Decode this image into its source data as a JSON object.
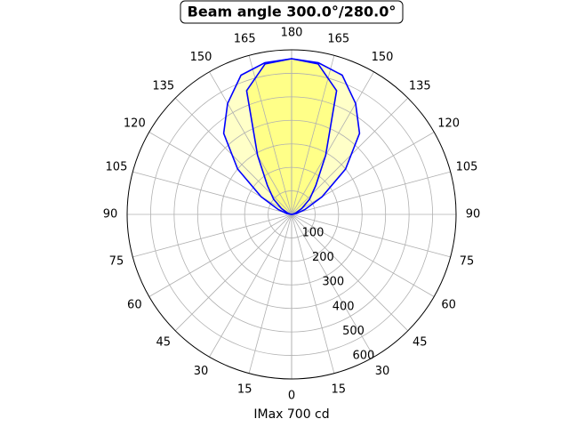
{
  "chart_data": {
    "type": "polar",
    "title": "Beam angle 300.0°/280.0°",
    "xlabel": "IMax 700 cd",
    "gamma": [
      90,
      100,
      110,
      120,
      130,
      140,
      150,
      160,
      170,
      180
    ],
    "series": [
      {
        "color": "#0000ff",
        "fill": "#ffffc8",
        "values": [
          0,
          20,
          60,
          150,
          300,
          450,
          545,
          630,
          655,
          662
        ]
      },
      {
        "color": "#0000ff",
        "fill": "#ffff88",
        "values": [
          0,
          5,
          20,
          50,
          100,
          160,
          290,
          560,
          650,
          662
        ]
      }
    ],
    "rlim": [
      0,
      700
    ],
    "rticks": [
      100,
      200,
      300,
      400,
      500,
      600
    ],
    "thetaticks": [
      0,
      15,
      30,
      45,
      60,
      75,
      90,
      105,
      120,
      135,
      150,
      165,
      180
    ],
    "grid": true
  }
}
